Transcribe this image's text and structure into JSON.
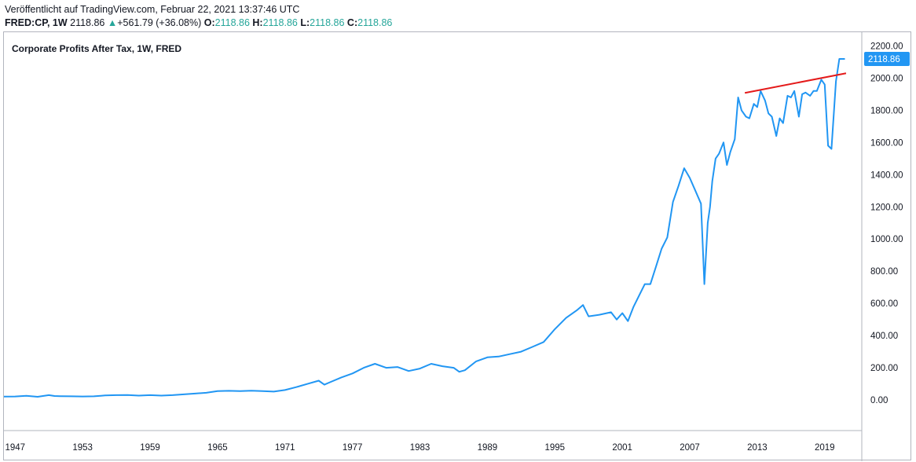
{
  "header": {
    "published": "Veröffentlicht auf TradingView.com, Februar 22, 2021 13:37:46 UTC",
    "symbol": "FRED:CP, 1W",
    "last": "2118.86",
    "change_icon": "triangle-up-icon",
    "change_arrow": "▲",
    "change": "+561.79 (+36.08%)",
    "open_label": "O:",
    "open": "2118.86",
    "high_label": "H:",
    "high": "2118.86",
    "low_label": "L:",
    "low": "2118.86",
    "close_label": "C:",
    "close": "2118.86"
  },
  "colors": {
    "series": "#2196f3",
    "trendline": "#e41a1a",
    "up": "#26a69a",
    "text": "#131722",
    "border": "#b2b5be"
  },
  "chart_data": {
    "type": "line",
    "title": "Corporate Profits After Tax, 1W, FRED",
    "x_ticks": [
      "1947",
      "1953",
      "1959",
      "1965",
      "1971",
      "1977",
      "1983",
      "1989",
      "1995",
      "2001",
      "2007",
      "2013",
      "2019"
    ],
    "y_ticks": [
      "0.00",
      "200.00",
      "400.00",
      "600.00",
      "800.00",
      "1000.00",
      "1200.00",
      "1400.00",
      "1600.00",
      "1800.00",
      "2000.00",
      "2200.00"
    ],
    "xlim": [
      1946,
      2022.3
    ],
    "ylim": [
      -190,
      2285
    ],
    "last_value_label": "2118.86",
    "series": [
      {
        "x": [
          1946.0,
          1947.0,
          1948.0,
          1949.0,
          1950.0,
          1950.5,
          1951.0,
          1952.0,
          1953.0,
          1954.0,
          1955.0,
          1956.0,
          1957.0,
          1958.0,
          1959.0,
          1960.0,
          1961.0,
          1962.0,
          1963.0,
          1964.0,
          1965.0,
          1966.0,
          1967.0,
          1968.0,
          1969.0,
          1970.0,
          1971.0,
          1972.0,
          1973.0,
          1974.0,
          1974.5,
          1975.0,
          1976.0,
          1977.0,
          1978.0,
          1979.0,
          1980.0,
          1981.0,
          1982.0,
          1983.0,
          1984.0,
          1985.0,
          1986.0,
          1986.5,
          1987.0,
          1988.0,
          1989.0,
          1990.0,
          1991.0,
          1992.0,
          1993.0,
          1994.0,
          1995.0,
          1996.0,
          1997.0,
          1997.5,
          1998.0,
          1999.0,
          2000.0,
          2000.5,
          2001.0,
          2001.5,
          2002.0,
          2003.0,
          2003.5,
          2004.0,
          2004.5,
          2005.0,
          2005.5,
          2006.0,
          2006.5,
          2007.0,
          2007.5,
          2008.0,
          2008.3,
          2008.6,
          2008.8,
          2009.0,
          2009.3,
          2009.6,
          2010.0,
          2010.3,
          2010.6,
          2011.0,
          2011.3,
          2011.6,
          2012.0,
          2012.3,
          2012.7,
          2013.0,
          2013.3,
          2013.7,
          2014.0,
          2014.3,
          2014.7,
          2015.0,
          2015.3,
          2015.7,
          2016.0,
          2016.3,
          2016.7,
          2017.0,
          2017.3,
          2017.7,
          2018.0,
          2018.3,
          2018.7,
          2019.0,
          2019.3,
          2019.6,
          2020.0,
          2020.3,
          2020.6,
          2020.8
        ],
        "y": [
          21,
          22,
          26,
          20,
          30,
          25,
          24,
          23,
          22,
          23,
          28,
          30,
          31,
          27,
          30,
          27,
          30,
          35,
          40,
          45,
          55,
          57,
          55,
          58,
          55,
          52,
          62,
          80,
          100,
          120,
          95,
          110,
          140,
          165,
          200,
          225,
          200,
          205,
          180,
          195,
          225,
          210,
          200,
          175,
          185,
          240,
          265,
          270,
          285,
          300,
          330,
          360,
          440,
          510,
          560,
          590,
          520,
          530,
          545,
          500,
          540,
          490,
          580,
          720,
          720,
          830,
          940,
          1010,
          1230,
          1330,
          1440,
          1380,
          1300,
          1220,
          720,
          1100,
          1200,
          1360,
          1500,
          1530,
          1600,
          1460,
          1540,
          1620,
          1880,
          1800,
          1760,
          1750,
          1840,
          1820,
          1920,
          1860,
          1780,
          1760,
          1640,
          1750,
          1720,
          1890,
          1880,
          1920,
          1760,
          1900,
          1910,
          1890,
          1920,
          1920,
          1990,
          1960,
          1580,
          1560,
          1980,
          2119,
          2119,
          2119
        ]
      }
    ],
    "trendline": {
      "x": [
        2011.9,
        2020.9
      ],
      "y": [
        1908,
        2030
      ]
    }
  }
}
